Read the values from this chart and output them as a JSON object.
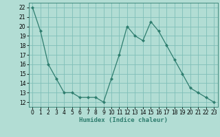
{
  "x": [
    0,
    1,
    2,
    3,
    4,
    5,
    6,
    7,
    8,
    9,
    10,
    11,
    12,
    13,
    14,
    15,
    16,
    17,
    18,
    19,
    20,
    21,
    22,
    23
  ],
  "y": [
    22,
    19.5,
    16,
    14.5,
    13,
    13,
    12.5,
    12.5,
    12.5,
    12,
    14.5,
    17,
    20,
    19,
    18.5,
    20.5,
    19.5,
    18,
    16.5,
    15,
    13.5,
    13,
    12.5,
    12
  ],
  "line_color": "#2e7d6e",
  "marker": "D",
  "marker_size": 2.0,
  "bg_color": "#b2ddd4",
  "grid_color": "#7fbfb8",
  "xlabel": "Humidex (Indice chaleur)",
  "xlim": [
    -0.5,
    23.5
  ],
  "ylim": [
    11.5,
    22.5
  ],
  "xticks": [
    0,
    1,
    2,
    3,
    4,
    5,
    6,
    7,
    8,
    9,
    10,
    11,
    12,
    13,
    14,
    15,
    16,
    17,
    18,
    19,
    20,
    21,
    22,
    23
  ],
  "yticks": [
    12,
    13,
    14,
    15,
    16,
    17,
    18,
    19,
    20,
    21,
    22
  ],
  "xlabel_fontsize": 6.5,
  "tick_fontsize": 5.5,
  "spine_color": "#2e7d6e"
}
